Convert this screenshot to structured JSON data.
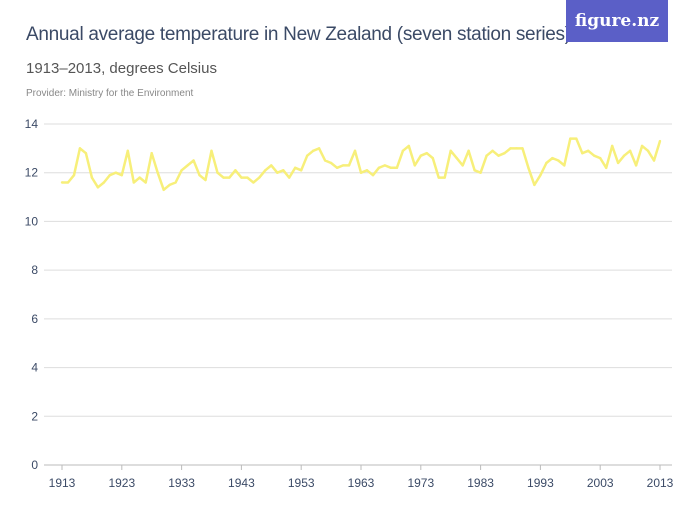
{
  "header": {
    "title": "Annual average temperature in New Zealand (seven station series)",
    "subtitle": "1913–2013, degrees Celsius",
    "provider": "Provider: Ministry for the Environment",
    "logo": "figure.nz"
  },
  "colors": {
    "line": "#f7ef7a",
    "grid": "#dddddd",
    "text": "#3b4a66",
    "logo_bg": "#5b5fc7"
  },
  "chart_data": {
    "type": "line",
    "title": "Annual average temperature in New Zealand (seven station series)",
    "subtitle": "1913–2013, degrees Celsius",
    "xlim": [
      1913,
      2013
    ],
    "ylim": [
      0,
      14
    ],
    "grid": true,
    "x_ticks": [
      "1913",
      "1923",
      "1933",
      "1943",
      "1953",
      "1963",
      "1973",
      "1983",
      "1993",
      "2003",
      "2013"
    ],
    "y_ticks": [
      "0",
      "2",
      "4",
      "6",
      "8",
      "10",
      "12",
      "14"
    ],
    "x_start": 1913,
    "values": [
      11.6,
      11.6,
      11.9,
      13.0,
      12.8,
      11.8,
      11.4,
      11.6,
      11.9,
      12.0,
      11.9,
      12.9,
      11.6,
      11.8,
      11.6,
      12.8,
      12.0,
      11.3,
      11.5,
      11.6,
      12.1,
      12.3,
      12.5,
      11.9,
      11.7,
      12.9,
      12.0,
      11.8,
      11.8,
      12.1,
      11.8,
      11.8,
      11.6,
      11.8,
      12.1,
      12.3,
      12.0,
      12.1,
      11.8,
      12.2,
      12.1,
      12.7,
      12.9,
      13.0,
      12.5,
      12.4,
      12.2,
      12.3,
      12.3,
      12.9,
      12.0,
      12.1,
      11.9,
      12.2,
      12.3,
      12.2,
      12.2,
      12.9,
      13.1,
      12.3,
      12.7,
      12.8,
      12.6,
      11.8,
      11.8,
      12.9,
      12.6,
      12.3,
      12.9,
      12.1,
      12.0,
      12.7,
      12.9,
      12.7,
      12.8,
      13.0,
      13.0,
      13.0,
      12.2,
      11.5,
      11.9,
      12.4,
      12.6,
      12.5,
      12.3,
      13.4,
      13.4,
      12.8,
      12.9,
      12.7,
      12.6,
      12.2,
      13.1,
      12.4,
      12.7,
      12.9,
      12.3,
      13.1,
      12.9,
      12.5,
      13.3
    ]
  }
}
